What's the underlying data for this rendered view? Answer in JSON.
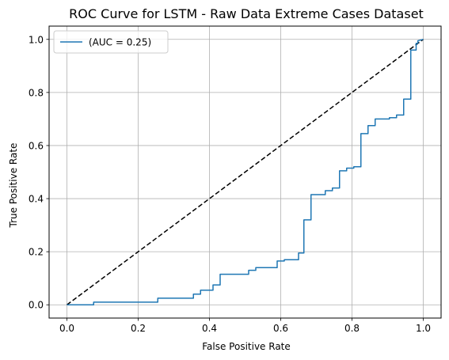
{
  "chart_data": {
    "type": "line",
    "title": "ROC Curve for LSTM - Raw Data Extreme Cases Dataset",
    "xlabel": "False Positive Rate",
    "ylabel": "True Positive Rate",
    "xlim": [
      -0.05,
      1.05
    ],
    "ylim": [
      -0.05,
      1.05
    ],
    "xticks": [
      "0.0",
      "0.2",
      "0.4",
      "0.6",
      "0.8",
      "1.0"
    ],
    "yticks": [
      "0.0",
      "0.2",
      "0.4",
      "0.6",
      "0.8",
      "1.0"
    ],
    "grid": true,
    "legend_position": "top-left",
    "series": [
      {
        "name": "(AUC = 0.25)",
        "color": "#1f77b4",
        "style": "solid",
        "x": [
          0.0,
          0.075,
          0.075,
          0.255,
          0.255,
          0.355,
          0.355,
          0.375,
          0.375,
          0.41,
          0.41,
          0.43,
          0.43,
          0.51,
          0.51,
          0.53,
          0.53,
          0.59,
          0.59,
          0.61,
          0.61,
          0.65,
          0.65,
          0.665,
          0.665,
          0.685,
          0.685,
          0.725,
          0.725,
          0.745,
          0.745,
          0.765,
          0.765,
          0.785,
          0.785,
          0.805,
          0.805,
          0.825,
          0.825,
          0.845,
          0.845,
          0.865,
          0.865,
          0.905,
          0.905,
          0.925,
          0.925,
          0.945,
          0.945,
          0.965,
          0.965,
          0.98,
          0.98,
          0.985,
          0.985,
          1.0
        ],
        "y": [
          0.0,
          0.0,
          0.01,
          0.01,
          0.025,
          0.025,
          0.04,
          0.04,
          0.055,
          0.055,
          0.075,
          0.075,
          0.115,
          0.115,
          0.13,
          0.13,
          0.14,
          0.14,
          0.165,
          0.165,
          0.17,
          0.17,
          0.195,
          0.195,
          0.32,
          0.32,
          0.415,
          0.415,
          0.43,
          0.43,
          0.44,
          0.44,
          0.505,
          0.505,
          0.515,
          0.515,
          0.52,
          0.52,
          0.645,
          0.645,
          0.675,
          0.675,
          0.7,
          0.7,
          0.705,
          0.705,
          0.715,
          0.715,
          0.775,
          0.775,
          0.96,
          0.96,
          0.985,
          0.985,
          0.995,
          1.0
        ]
      },
      {
        "name": "",
        "color": "#000000",
        "style": "dashed",
        "x": [
          0.0,
          1.0
        ],
        "y": [
          0.0,
          1.0
        ]
      }
    ]
  }
}
